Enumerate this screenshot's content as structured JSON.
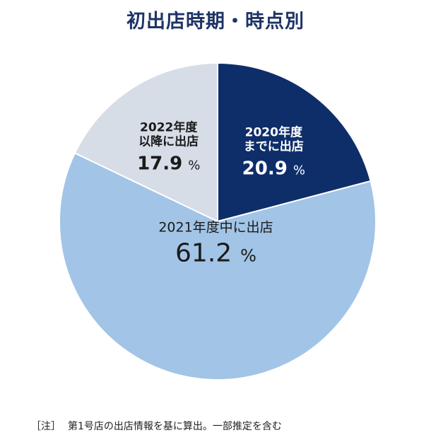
{
  "title": "初出店時期・時点別",
  "footnote": {
    "marker": "［注］",
    "text": "第1号店の出店情報を基に算出。一部推定を含む"
  },
  "chart_data": {
    "type": "pie",
    "title": "初出店時期・時点別",
    "start": "12 o'clock",
    "direction": "clockwise",
    "slices": [
      {
        "label_lines": [
          "2020年度",
          "までに出店"
        ],
        "value": 20.9,
        "value_text": "20.9",
        "unit": "%",
        "color": "#0e2e6a",
        "text_color": "#ffffff"
      },
      {
        "label_lines": [
          "2021年度中に出店"
        ],
        "value": 61.2,
        "value_text": "61.2",
        "unit": "%",
        "color": "#a2c4e6",
        "text_color": "#1a1a1a"
      },
      {
        "label_lines": [
          "2022年度",
          "以降に出店"
        ],
        "value": 17.9,
        "value_text": "17.9",
        "unit": "%",
        "color": "#d6dde7",
        "text_color": "#1a1a1a"
      }
    ]
  }
}
